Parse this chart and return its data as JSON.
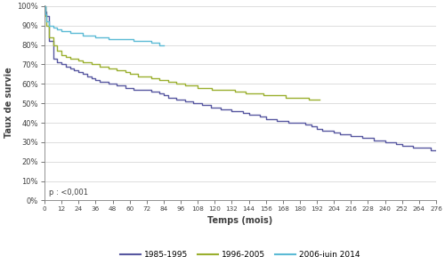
{
  "title": "",
  "xlabel": "Temps (mois)",
  "ylabel": "Taux de survie",
  "annotation": "p : <0,001",
  "xlim": [
    0,
    276
  ],
  "ylim": [
    0,
    1.005
  ],
  "xticks": [
    0,
    12,
    24,
    36,
    48,
    60,
    72,
    84,
    96,
    108,
    120,
    132,
    144,
    156,
    168,
    180,
    192,
    204,
    216,
    228,
    240,
    252,
    264,
    276
  ],
  "yticks": [
    0.0,
    0.1,
    0.2,
    0.3,
    0.4,
    0.5,
    0.6,
    0.7,
    0.8,
    0.9,
    1.0
  ],
  "series": [
    {
      "label": "1985-1995",
      "color": "#5757a0",
      "x": [
        0,
        0.5,
        1,
        3,
        6,
        9,
        12,
        15,
        18,
        21,
        24,
        27,
        30,
        33,
        36,
        39,
        42,
        45,
        48,
        51,
        54,
        57,
        60,
        63,
        66,
        69,
        72,
        75,
        78,
        81,
        84,
        87,
        90,
        93,
        96,
        99,
        102,
        105,
        108,
        111,
        114,
        117,
        120,
        124,
        128,
        132,
        136,
        140,
        144,
        148,
        152,
        156,
        160,
        164,
        168,
        172,
        176,
        180,
        184,
        188,
        192,
        196,
        200,
        204,
        208,
        212,
        216,
        220,
        224,
        228,
        232,
        236,
        240,
        244,
        248,
        252,
        256,
        260,
        264,
        268,
        272,
        276
      ],
      "y": [
        1.0,
        0.97,
        0.95,
        0.82,
        0.73,
        0.71,
        0.7,
        0.69,
        0.68,
        0.67,
        0.66,
        0.65,
        0.64,
        0.63,
        0.62,
        0.61,
        0.61,
        0.6,
        0.6,
        0.59,
        0.59,
        0.58,
        0.58,
        0.57,
        0.57,
        0.57,
        0.57,
        0.56,
        0.56,
        0.55,
        0.54,
        0.53,
        0.53,
        0.52,
        0.52,
        0.51,
        0.51,
        0.5,
        0.5,
        0.49,
        0.49,
        0.48,
        0.48,
        0.47,
        0.47,
        0.46,
        0.46,
        0.45,
        0.44,
        0.44,
        0.43,
        0.42,
        0.42,
        0.41,
        0.41,
        0.4,
        0.4,
        0.4,
        0.39,
        0.38,
        0.37,
        0.36,
        0.36,
        0.35,
        0.34,
        0.34,
        0.33,
        0.33,
        0.32,
        0.32,
        0.31,
        0.31,
        0.3,
        0.3,
        0.29,
        0.28,
        0.28,
        0.27,
        0.27,
        0.27,
        0.26,
        0.26
      ]
    },
    {
      "label": "1996-2005",
      "color": "#9aaf2e",
      "x": [
        0,
        0.5,
        1,
        3,
        6,
        9,
        12,
        15,
        18,
        21,
        24,
        27,
        30,
        33,
        36,
        39,
        42,
        45,
        48,
        51,
        54,
        57,
        60,
        63,
        66,
        69,
        72,
        75,
        78,
        81,
        84,
        87,
        90,
        93,
        96,
        99,
        102,
        105,
        108,
        111,
        114,
        118,
        122,
        126,
        130,
        134,
        138,
        142,
        146,
        150,
        154,
        158,
        162,
        166,
        170,
        174,
        178,
        182,
        186,
        190,
        194
      ],
      "y": [
        1.0,
        0.95,
        0.9,
        0.84,
        0.8,
        0.77,
        0.75,
        0.74,
        0.73,
        0.73,
        0.72,
        0.71,
        0.71,
        0.7,
        0.7,
        0.69,
        0.69,
        0.68,
        0.68,
        0.67,
        0.67,
        0.66,
        0.65,
        0.65,
        0.64,
        0.64,
        0.64,
        0.63,
        0.63,
        0.62,
        0.62,
        0.61,
        0.61,
        0.6,
        0.6,
        0.59,
        0.59,
        0.59,
        0.58,
        0.58,
        0.58,
        0.57,
        0.57,
        0.57,
        0.57,
        0.56,
        0.56,
        0.55,
        0.55,
        0.55,
        0.54,
        0.54,
        0.54,
        0.54,
        0.53,
        0.53,
        0.53,
        0.53,
        0.52,
        0.52,
        0.52
      ]
    },
    {
      "label": "2006-juin 2014",
      "color": "#5bbad5",
      "x": [
        0,
        0.5,
        1,
        3,
        6,
        9,
        12,
        15,
        18,
        21,
        24,
        27,
        30,
        33,
        36,
        39,
        42,
        45,
        48,
        51,
        54,
        57,
        60,
        63,
        66,
        69,
        72,
        75,
        78,
        81,
        84
      ],
      "y": [
        1.0,
        0.96,
        0.92,
        0.9,
        0.89,
        0.88,
        0.87,
        0.87,
        0.86,
        0.86,
        0.86,
        0.85,
        0.85,
        0.85,
        0.84,
        0.84,
        0.84,
        0.83,
        0.83,
        0.83,
        0.83,
        0.83,
        0.83,
        0.82,
        0.82,
        0.82,
        0.82,
        0.81,
        0.81,
        0.8,
        0.8
      ]
    }
  ],
  "bg_color": "#ffffff",
  "grid_color": "#d0d0d0",
  "spine_color": "#808080",
  "tick_color": "#404040",
  "label_color": "#404040"
}
